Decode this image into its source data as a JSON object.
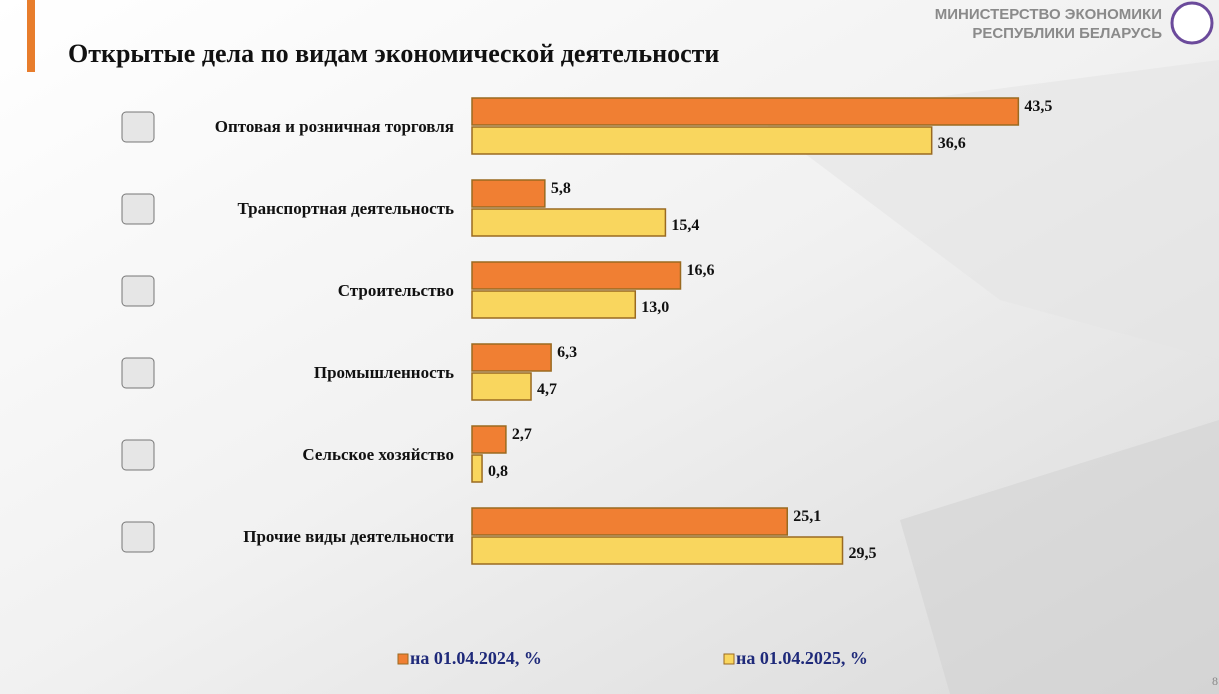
{
  "header": {
    "ministry": [
      "МИНИСТЕРСТВО ЭКОНОМИКИ",
      "РЕСПУБЛИКИ БЕЛАРУСЬ"
    ],
    "page_number": "8"
  },
  "chart_data": {
    "type": "bar",
    "orientation": "horizontal",
    "title": "Открытые дела по видам экономической деятельности",
    "categories": [
      "Оптовая и розничная торговля",
      "Транспортная деятельность",
      "Строительство",
      "Промышленность",
      "Сельское хозяйство",
      "Прочие виды деятельности"
    ],
    "series": [
      {
        "name": "на 01.04.2024, %",
        "color": "#f07f33",
        "values": [
          43.5,
          5.8,
          16.6,
          6.3,
          2.7,
          25.1
        ],
        "value_labels": [
          "43,5",
          "5,8",
          "16,6",
          "6,3",
          "2,7",
          "25,1"
        ]
      },
      {
        "name": "на 01.04.2025, %",
        "color": "#f9d65e",
        "values": [
          36.6,
          15.4,
          13.0,
          4.7,
          0.8,
          29.5
        ],
        "value_labels": [
          "36,6",
          "15,4",
          "13,0",
          "4,7",
          "0,8",
          "29,5"
        ]
      }
    ],
    "legend": "bottom"
  }
}
